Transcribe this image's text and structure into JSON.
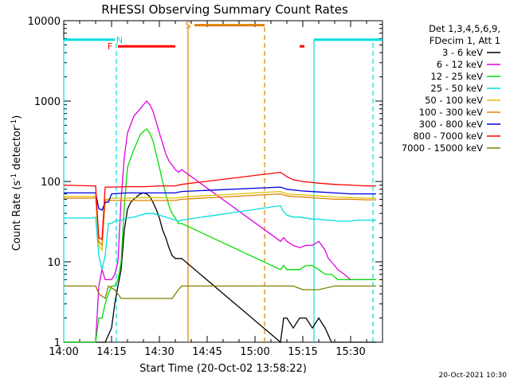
{
  "chart_data": {
    "type": "line",
    "title": "RHESSI Observing Summary Count Rates",
    "xlabel": "Start Time (20-Oct-02 13:58:22)",
    "ylabel": "Count Rate (s^-1 detector^-1)",
    "ylabel_parts": {
      "main": "Count Rate (s",
      "exp": "-1",
      "mid": " detector",
      "exp2": "-1",
      "end": ")"
    },
    "x_unit": "minutes since 14:00",
    "xlim": [
      0,
      100
    ],
    "ylim": [
      1,
      10000
    ],
    "y_scale": "log",
    "grid": false,
    "x_ticks": [
      {
        "x": 0,
        "label": "14:00"
      },
      {
        "x": 15,
        "label": "14:15"
      },
      {
        "x": 30,
        "label": "14:30"
      },
      {
        "x": 45,
        "label": "14:45"
      },
      {
        "x": 60,
        "label": "15:00"
      },
      {
        "x": 75,
        "label": "15:15"
      },
      {
        "x": 90,
        "label": "15:30"
      }
    ],
    "y_ticks": [
      {
        "y": 1,
        "label": "1"
      },
      {
        "y": 10,
        "label": "10"
      },
      {
        "y": 100,
        "label": "100"
      },
      {
        "y": 1000,
        "label": "1000"
      },
      {
        "y": 10000,
        "label": "10000"
      }
    ],
    "legend_header": [
      "Det 1,3,4,5,6,9,",
      "FDecim 1, Att 1"
    ],
    "legend_position": "right",
    "series": [
      {
        "name": "3 - 6 keV",
        "color": "#000000",
        "x": [
          0,
          12,
          13,
          15,
          16,
          17,
          18,
          19,
          20,
          21,
          22,
          23,
          24,
          25,
          26,
          27,
          28,
          29,
          30,
          31,
          32,
          33,
          34,
          35,
          36,
          37,
          68,
          69,
          70,
          72,
          74,
          76,
          78,
          80,
          82,
          84,
          86,
          88,
          90,
          92,
          94,
          96,
          98
        ],
        "y": [
          1,
          1,
          1,
          1.5,
          3,
          5,
          8,
          25,
          45,
          55,
          60,
          65,
          70,
          72,
          70,
          65,
          55,
          45,
          35,
          25,
          20,
          15,
          12,
          11,
          11,
          11,
          1,
          2,
          2,
          1.5,
          2,
          2,
          1.5,
          2,
          1.5,
          1,
          1,
          1,
          1,
          1,
          1,
          1,
          1
        ]
      },
      {
        "name": "6 - 12 keV",
        "color": "#e000e0",
        "x": [
          0,
          9,
          10,
          11,
          12,
          13,
          14,
          15,
          16,
          17,
          18,
          19,
          20,
          22,
          24,
          25,
          26,
          27,
          28,
          29,
          30,
          31,
          32,
          33,
          34,
          35,
          36,
          37,
          68,
          69,
          70,
          72,
          74,
          76,
          78,
          80,
          82,
          83,
          84,
          86,
          88,
          90,
          92,
          94,
          96,
          98
        ],
        "y": [
          1,
          1,
          1,
          5,
          8,
          6,
          6,
          6,
          7,
          10,
          60,
          200,
          400,
          650,
          800,
          900,
          1000,
          900,
          750,
          550,
          400,
          300,
          220,
          180,
          160,
          140,
          130,
          140,
          18,
          20,
          18,
          16,
          15,
          16,
          16,
          18,
          14,
          11,
          10,
          8,
          7,
          6,
          6,
          6,
          6,
          6
        ]
      },
      {
        "name": "12 - 25 keV",
        "color": "#00dd00",
        "x": [
          0,
          10,
          11,
          12,
          13,
          14,
          15,
          16,
          17,
          18,
          19,
          20,
          22,
          24,
          25,
          26,
          27,
          28,
          29,
          30,
          31,
          32,
          33,
          34,
          35,
          36,
          37,
          68,
          69,
          70,
          72,
          74,
          76,
          78,
          80,
          82,
          84,
          86,
          88,
          90,
          92,
          94,
          96,
          98
        ],
        "y": [
          1,
          1,
          2,
          2,
          3,
          4,
          5,
          5,
          6,
          10,
          50,
          150,
          250,
          380,
          420,
          450,
          400,
          320,
          220,
          150,
          100,
          70,
          50,
          40,
          35,
          30,
          30,
          8,
          9,
          8,
          8,
          8,
          9,
          9,
          8,
          7,
          7,
          6,
          6,
          6,
          6,
          6,
          6,
          6
        ]
      },
      {
        "name": "25 - 50 keV",
        "color": "#00dddd",
        "x": [
          0,
          9,
          10,
          11,
          12,
          13,
          14,
          15,
          16,
          18,
          20,
          22,
          24,
          26,
          28,
          30,
          32,
          34,
          36,
          37,
          68,
          69,
          70,
          72,
          74,
          76,
          78,
          80,
          82,
          84,
          86,
          88,
          90,
          92,
          94,
          96,
          98
        ],
        "y": [
          35,
          35,
          36,
          12,
          8,
          12,
          30,
          30,
          32,
          33,
          35,
          36,
          38,
          40,
          40,
          38,
          36,
          34,
          32,
          33,
          50,
          42,
          38,
          36,
          36,
          35,
          34,
          34,
          33,
          33,
          32,
          32,
          32,
          33,
          33,
          33,
          33
        ]
      },
      {
        "name": "50 - 100 keV",
        "color": "#e0c000",
        "x": [
          0,
          9,
          10,
          11,
          12,
          13,
          14,
          15,
          20,
          25,
          30,
          35,
          37,
          68,
          70,
          75,
          80,
          85,
          90,
          95,
          98
        ],
        "y": [
          65,
          65,
          66,
          16,
          14,
          60,
          60,
          62,
          62,
          63,
          63,
          62,
          64,
          75,
          70,
          68,
          66,
          64,
          63,
          62,
          62
        ]
      },
      {
        "name": "100 - 300 keV",
        "color": "#e08000",
        "x": [
          0,
          9,
          10,
          11,
          12,
          13,
          14,
          15,
          20,
          25,
          30,
          35,
          37,
          68,
          70,
          75,
          80,
          85,
          90,
          95,
          98
        ],
        "y": [
          62,
          62,
          63,
          18,
          16,
          58,
          58,
          58,
          58,
          58,
          58,
          58,
          60,
          70,
          66,
          64,
          62,
          60,
          60,
          59,
          59
        ]
      },
      {
        "name": "300 - 800 keV",
        "color": "#0000e0",
        "x": [
          0,
          9,
          10,
          11,
          12,
          13,
          14,
          15,
          20,
          25,
          30,
          35,
          37,
          68,
          70,
          75,
          80,
          85,
          90,
          95,
          98
        ],
        "y": [
          72,
          72,
          72,
          46,
          44,
          55,
          55,
          70,
          72,
          72,
          72,
          72,
          75,
          85,
          80,
          76,
          74,
          72,
          70,
          70,
          70
        ]
      },
      {
        "name": "800 - 7000 keV",
        "color": "#ff0000",
        "x": [
          0,
          9,
          10,
          11,
          12,
          13,
          14,
          15,
          20,
          25,
          30,
          35,
          37,
          68,
          70,
          72,
          75,
          80,
          85,
          90,
          95,
          98
        ],
        "y": [
          90,
          88,
          88,
          20,
          19,
          85,
          85,
          85,
          86,
          86,
          88,
          88,
          92,
          130,
          115,
          105,
          100,
          95,
          92,
          90,
          88,
          88
        ]
      },
      {
        "name": "7000 - 15000 keV",
        "color": "#808000",
        "x": [
          0,
          10,
          11,
          13,
          14,
          16,
          18,
          20,
          22,
          24,
          26,
          28,
          30,
          32,
          34,
          36,
          37,
          68,
          70,
          72,
          75,
          80,
          85,
          90,
          95,
          98
        ],
        "y": [
          5,
          5,
          4,
          3.5,
          5,
          4.5,
          3.5,
          3.5,
          3.5,
          3.5,
          3.5,
          3.5,
          3.5,
          3.5,
          3.5,
          4.5,
          5,
          5,
          5,
          5,
          4.5,
          4.5,
          5,
          5,
          5,
          5
        ]
      }
    ],
    "annotations": [
      {
        "type": "flag-bar",
        "label": "N",
        "color": "#00dddd",
        "x_start": 0,
        "x_end": 16,
        "y": 5800,
        "label_x": 17.5
      },
      {
        "type": "flag-bar",
        "label": "",
        "color": "#00dddd",
        "x_start": 78.5,
        "x_end": 100,
        "y": 5800,
        "label_x": null
      },
      {
        "type": "flag-bar",
        "label": "F",
        "color": "#ff0000",
        "x_start": 17,
        "x_end": 35,
        "y": 4800,
        "label_x": 14.5
      },
      {
        "type": "flag-bar",
        "label": "",
        "color": "#ff0000",
        "x_start": 74,
        "x_end": 75.5,
        "y": 4800,
        "label_x": null
      },
      {
        "type": "flag-bar",
        "label": "S",
        "color": "#e08000",
        "x_start": 41,
        "x_end": 63,
        "y": 8800,
        "label_x": 39
      }
    ],
    "vlines": [
      {
        "x": 0,
        "color": "#00dddd",
        "style": "solid",
        "from": 1,
        "to": 5800
      },
      {
        "x": 16.5,
        "color": "#00dddd",
        "style": "dashed",
        "from": 1,
        "to": 5800
      },
      {
        "x": 78.5,
        "color": "#00dddd",
        "style": "solid",
        "from": 1,
        "to": 5800
      },
      {
        "x": 97,
        "color": "#00dddd",
        "style": "dashed",
        "from": 1,
        "to": 5800
      },
      {
        "x": 39,
        "color": "#e08000",
        "style": "solid",
        "from": 1,
        "to": 8800
      },
      {
        "x": 63,
        "color": "#e08000",
        "style": "dashed",
        "from": 1,
        "to": 8800
      }
    ],
    "footer_date": "20-Oct-2021 10:30"
  }
}
